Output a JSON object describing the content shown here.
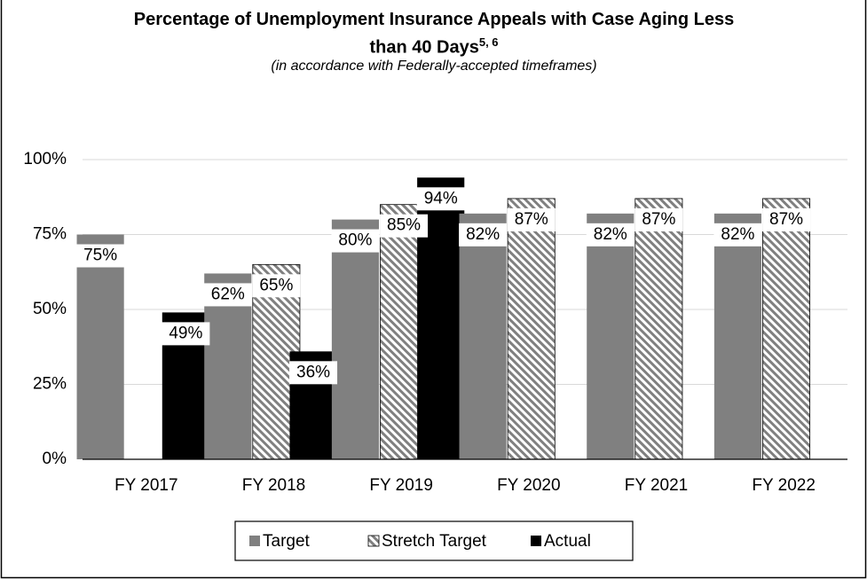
{
  "chart_data": {
    "type": "bar",
    "title": "Percentage of Unemployment Insurance Appeals with Case Aging Less than 40 Days",
    "title_note": "5, 6",
    "subtitle": "(in accordance with Federally-accepted timeframes)",
    "categories": [
      "FY 2017",
      "FY 2018",
      "FY 2019",
      "FY 2020",
      "FY 2021",
      "FY 2022"
    ],
    "series": [
      {
        "name": "Target",
        "color": "#808080",
        "values": [
          75,
          62,
          80,
          82,
          82,
          82
        ],
        "value_labels": [
          "75%",
          "62%",
          "80%",
          "82%",
          "82%",
          "82%"
        ]
      },
      {
        "name": "Stretch Target",
        "color": "#808080",
        "pattern": "diagonal-hatch",
        "values": [
          null,
          65,
          85,
          87,
          87,
          87
        ],
        "value_labels": [
          null,
          "65%",
          "85%",
          "87%",
          "87%",
          "87%"
        ]
      },
      {
        "name": "Actual",
        "color": "#000000",
        "values": [
          49,
          36,
          94,
          null,
          null,
          null
        ],
        "value_labels": [
          "49%",
          "36%",
          "94%",
          null,
          null,
          null
        ]
      }
    ],
    "ylim": [
      0,
      100
    ],
    "yticks": [
      {
        "value": 0,
        "label": "0%"
      },
      {
        "value": 25,
        "label": "25%"
      },
      {
        "value": 50,
        "label": "50%"
      },
      {
        "value": 75,
        "label": "75%"
      },
      {
        "value": 100,
        "label": "100%"
      }
    ],
    "grid": true,
    "legend": "bottom"
  }
}
